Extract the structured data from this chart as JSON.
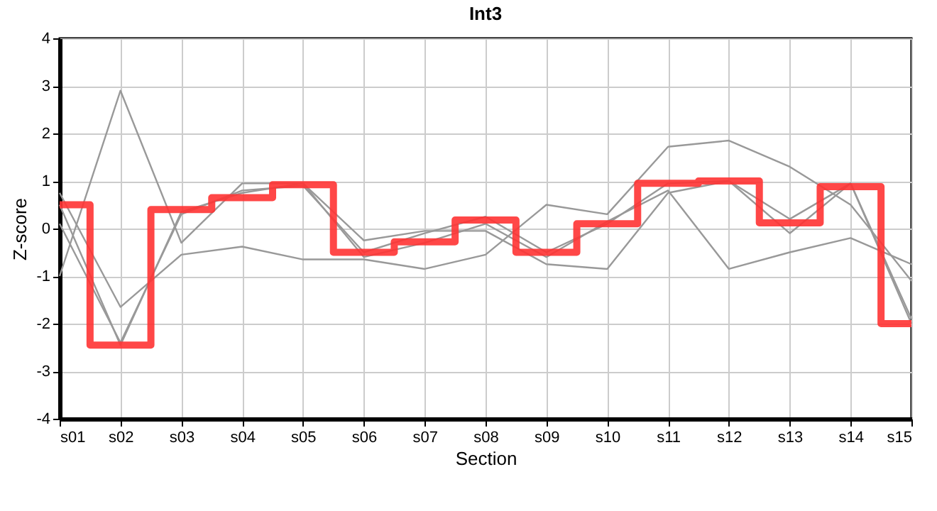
{
  "chart_data": {
    "type": "line",
    "title": "Int3",
    "xlabel": "Section",
    "ylabel": "Z-score",
    "categories": [
      "s01",
      "s02",
      "s03",
      "s04",
      "s05",
      "s06",
      "s07",
      "s08",
      "s09",
      "s10",
      "s11",
      "s12",
      "s13",
      "s14",
      "s15"
    ],
    "series": [
      {
        "color": "#999999",
        "values": [
          -1.0,
          2.9,
          -0.3,
          0.95,
          0.95,
          -0.25,
          -0.05,
          -0.05,
          -0.75,
          -0.85,
          0.75,
          1.0,
          -0.1,
          0.95,
          -1.9
        ]
      },
      {
        "color": "#999999",
        "values": [
          0.75,
          -1.65,
          -0.55,
          -0.38,
          -0.65,
          -0.65,
          -0.85,
          -0.55,
          0.5,
          0.3,
          1.72,
          1.85,
          1.3,
          0.5,
          -1.1
        ]
      },
      {
        "color": "#999999",
        "values": [
          0.1,
          -2.4,
          0.3,
          0.8,
          0.9,
          -0.5,
          -0.1,
          0.25,
          -0.5,
          0.1,
          0.95,
          1.0,
          0.2,
          0.95,
          -2.0
        ]
      },
      {
        "color": "#999999",
        "values": [
          0.5,
          -2.45,
          0.35,
          0.75,
          0.95,
          -0.6,
          -0.3,
          0.1,
          -0.6,
          0.15,
          0.8,
          -0.85,
          -0.5,
          -0.2,
          -0.75
        ]
      },
      {
        "type": "step",
        "color": "#ff3333",
        "values": [
          0.5,
          -2.45,
          0.4,
          0.65,
          0.92,
          -0.5,
          -0.28,
          0.18,
          -0.5,
          0.1,
          0.95,
          1.0,
          0.12,
          0.88,
          -2.0
        ]
      }
    ],
    "ylim": [
      -4,
      4
    ],
    "yticks": [
      -4,
      -3,
      -2,
      -1,
      0,
      1,
      2,
      3,
      4
    ],
    "grid": true
  }
}
